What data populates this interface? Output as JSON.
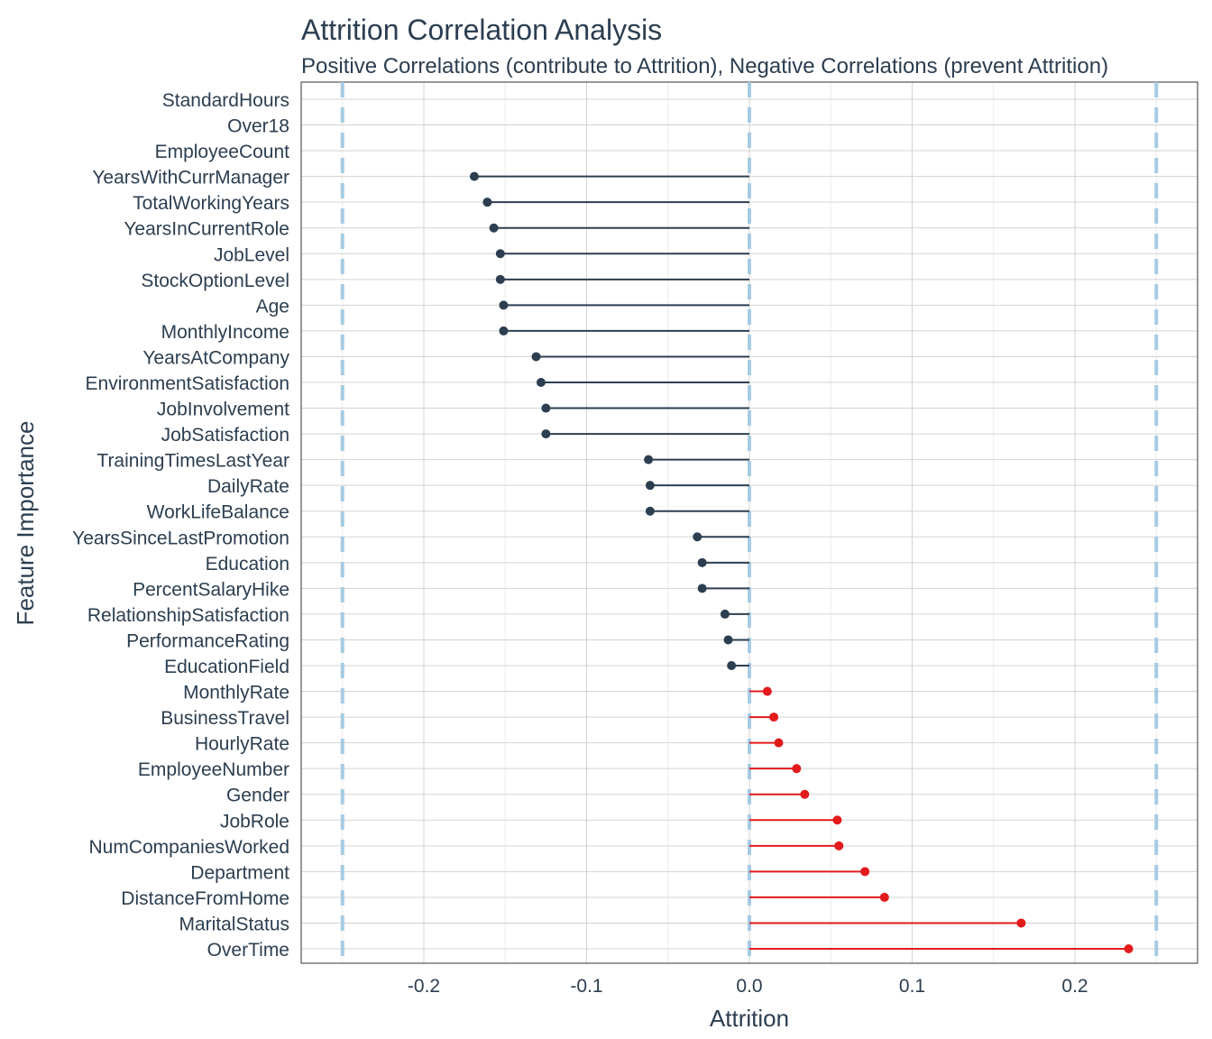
{
  "chart_data": {
    "type": "lollipop",
    "title": "Attrition Correlation Analysis",
    "subtitle": "Positive Correlations (contribute to Attrition), Negative Correlations (prevent Attrition)",
    "xlabel": "Attrition",
    "ylabel": "Feature Importance",
    "xlim": [
      -0.275,
      0.275
    ],
    "xticks": [
      -0.2,
      -0.1,
      0.0,
      0.1,
      0.2
    ],
    "xtick_labels": [
      "-0.2",
      "-0.1",
      "0.0",
      "0.1",
      "0.2"
    ],
    "reference_lines": [
      -0.25,
      0.0,
      0.25
    ],
    "grid": true,
    "colors": {
      "negative": "#2c3e50",
      "positive": "#e31a1c",
      "reference": "#a6cbe3",
      "grid": "#d3d3d3",
      "text": "#2c3e50"
    },
    "categories": [
      "StandardHours",
      "Over18",
      "EmployeeCount",
      "YearsWithCurrManager",
      "TotalWorkingYears",
      "YearsInCurrentRole",
      "JobLevel",
      "StockOptionLevel",
      "Age",
      "MonthlyIncome",
      "YearsAtCompany",
      "EnvironmentSatisfaction",
      "JobInvolvement",
      "JobSatisfaction",
      "TrainingTimesLastYear",
      "DailyRate",
      "WorkLifeBalance",
      "YearsSinceLastPromotion",
      "Education",
      "PercentSalaryHike",
      "RelationshipSatisfaction",
      "PerformanceRating",
      "EducationField",
      "MonthlyRate",
      "BusinessTravel",
      "HourlyRate",
      "EmployeeNumber",
      "Gender",
      "JobRole",
      "NumCompaniesWorked",
      "Department",
      "DistanceFromHome",
      "MaritalStatus",
      "OverTime"
    ],
    "values": [
      null,
      null,
      null,
      -0.169,
      -0.161,
      -0.157,
      -0.153,
      -0.153,
      -0.151,
      -0.151,
      -0.131,
      -0.128,
      -0.125,
      -0.125,
      -0.062,
      -0.061,
      -0.061,
      -0.032,
      -0.029,
      -0.029,
      -0.015,
      -0.013,
      -0.011,
      0.011,
      0.015,
      0.018,
      0.029,
      0.034,
      0.054,
      0.055,
      0.071,
      0.083,
      0.167,
      0.233
    ]
  }
}
